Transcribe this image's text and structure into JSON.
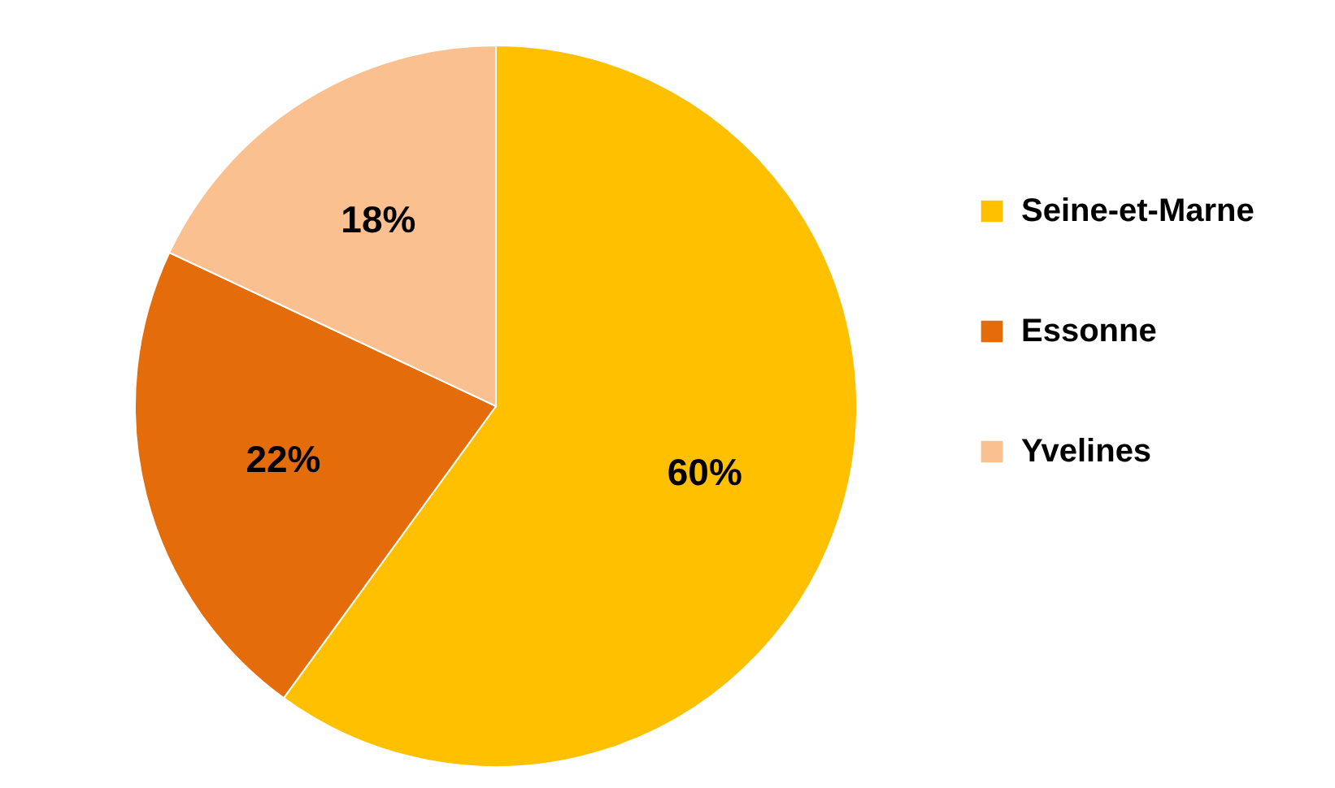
{
  "chart_data": {
    "type": "pie",
    "categories": [
      "Seine-et-Marne",
      "Essonne",
      "Yvelines"
    ],
    "values": [
      60,
      22,
      18
    ],
    "colors": [
      "#ffc000",
      "#e46c0a",
      "#fac090"
    ],
    "value_labels": [
      "60%",
      "22%",
      "18%"
    ],
    "legend": "right"
  }
}
